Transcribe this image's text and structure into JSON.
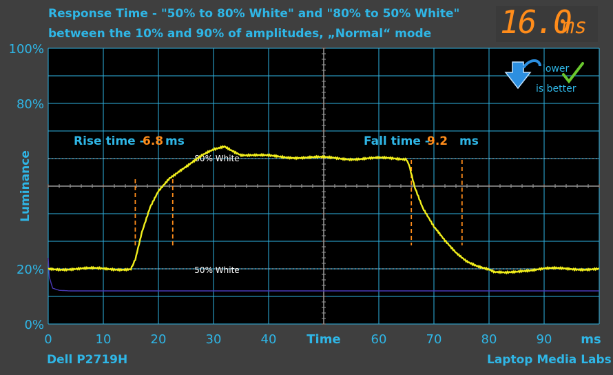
{
  "title_line1": "Response Time - \"50% to 80% White\" and \"80% to 50% White\"",
  "title_line2": "between the 10% and 90% of amplitudes, „Normal“ mode",
  "badge": {
    "value": "16.0",
    "unit": "ms"
  },
  "hint": {
    "line1": "lower",
    "line2": "is better",
    "icon": "blue-down-arrow-icon",
    "check": "green-checkmark-icon"
  },
  "footer": {
    "left": "Dell P2719H",
    "right": "Laptop Media Labs"
  },
  "colors": {
    "background": "#3f3f3f",
    "plot": "#000000",
    "accent": "#2fb6e6",
    "trace": "#f2ef1c",
    "marker": "#ff8c1a"
  },
  "chart_data": {
    "type": "line",
    "xlabel": "Time",
    "ylabel": "Luminance",
    "x_unit": "ms",
    "xlim": [
      0,
      100
    ],
    "ylim": [
      0,
      100
    ],
    "x_ticks": [
      "0",
      "10",
      "20",
      "30",
      "40",
      "60",
      "70",
      "80",
      "90"
    ],
    "y_ticks": [
      "100%",
      "80%",
      "20%",
      "0%"
    ],
    "grid": true,
    "reference_lines": [
      {
        "label": "80% White",
        "y": 60
      },
      {
        "label": "50% White",
        "y": 20
      }
    ],
    "annotations": {
      "rise_label": "Rise time -",
      "rise_value": "6.8",
      "rise_unit": "ms",
      "fall_label": "Fall time -",
      "fall_value": "9.2",
      "fall_unit": "ms"
    },
    "markers_x": [
      15.8,
      22.6,
      65.9,
      75.1
    ],
    "series": [
      {
        "points": [
          [
            0,
            20
          ],
          [
            15,
            20
          ],
          [
            15.8,
            23
          ],
          [
            17,
            33
          ],
          [
            18.5,
            42
          ],
          [
            20,
            48
          ],
          [
            22,
            53
          ],
          [
            24,
            56
          ],
          [
            26,
            58.5
          ],
          [
            28,
            61
          ],
          [
            30,
            63
          ],
          [
            32,
            64.5
          ],
          [
            33,
            63.5
          ],
          [
            35,
            61.5
          ],
          [
            38,
            61
          ],
          [
            45,
            60.5
          ],
          [
            55,
            60
          ],
          [
            65,
            60
          ],
          [
            65.5,
            58
          ],
          [
            66.5,
            50
          ],
          [
            68,
            42
          ],
          [
            70,
            35
          ],
          [
            72,
            30
          ],
          [
            74,
            26
          ],
          [
            76,
            23
          ],
          [
            78,
            21
          ],
          [
            80,
            19.5
          ],
          [
            81,
            18.5
          ],
          [
            83,
            18.5
          ],
          [
            86,
            19.5
          ],
          [
            90,
            20
          ],
          [
            100,
            20
          ]
        ]
      },
      {
        "points": [
          [
            0,
            24
          ],
          [
            0.2,
            17
          ],
          [
            0.8,
            13
          ],
          [
            2,
            12.2
          ],
          [
            4,
            12
          ],
          [
            100,
            12
          ]
        ]
      }
    ]
  }
}
